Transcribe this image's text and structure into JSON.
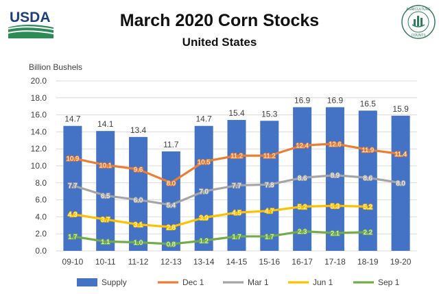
{
  "logo_text": "USDA",
  "seal_text": [
    "AGRICULTURE",
    "COUNTS"
  ],
  "title": "March 2020 Corn Stocks",
  "subtitle": "United States",
  "chart_data": {
    "type": "bar",
    "ylabel": "Billion Bushels",
    "ylim": [
      0,
      20
    ],
    "yticks": [
      "0.0",
      "2.0",
      "4.0",
      "6.0",
      "8.0",
      "10.0",
      "12.0",
      "14.0",
      "16.0",
      "18.0",
      "20.0"
    ],
    "grid": true,
    "legend_position": "bottom",
    "categories": [
      "09-10",
      "10-11",
      "11-12",
      "12-13",
      "13-14",
      "14-15",
      "15-16",
      "16-17",
      "17-18",
      "18-19",
      "19-20"
    ],
    "series": [
      {
        "name": "Supply",
        "kind": "bar",
        "color": "#4472C4",
        "values": [
          14.7,
          14.1,
          13.4,
          11.7,
          14.7,
          15.4,
          15.3,
          16.9,
          16.9,
          16.5,
          15.9
        ],
        "labels": [
          "14.7",
          "14.1",
          "13.4",
          "11.7",
          "14.7",
          "15.4",
          "15.3",
          "16.9",
          "16.9",
          "16.5",
          "15.9"
        ]
      },
      {
        "name": "Dec 1",
        "kind": "line",
        "color": "#ED7D31",
        "values": [
          10.9,
          10.1,
          9.6,
          8.0,
          10.5,
          11.2,
          11.2,
          12.4,
          12.6,
          11.9,
          11.4
        ],
        "labels": [
          "10.9",
          "10.1",
          "9.6",
          "8.0",
          "10.5",
          "11.2",
          "11.2",
          "12.4",
          "12.6",
          "11.9",
          "11.4"
        ]
      },
      {
        "name": "Mar 1",
        "kind": "line",
        "color": "#A5A5A5",
        "values": [
          7.7,
          6.5,
          6.0,
          5.4,
          7.0,
          7.7,
          7.8,
          8.6,
          8.9,
          8.6,
          8.0
        ],
        "labels": [
          "7.7",
          "6.5",
          "6.0",
          "5.4",
          "7.0",
          "7.7",
          "7.8",
          "8.6",
          "8.9",
          "8.6",
          "8.0"
        ]
      },
      {
        "name": "Jun 1",
        "kind": "line",
        "color": "#FFC000",
        "values": [
          4.3,
          3.7,
          3.1,
          2.8,
          3.9,
          4.5,
          4.7,
          5.2,
          5.3,
          5.2,
          null
        ],
        "labels": [
          "4.3",
          "3.7",
          "3.1",
          "2.8",
          "3.9",
          "4.5",
          "4.7",
          "5.2",
          "5.3",
          "5.2",
          ""
        ]
      },
      {
        "name": "Sep 1",
        "kind": "line",
        "color": "#70AD47",
        "values": [
          1.7,
          1.1,
          1.0,
          0.8,
          1.2,
          1.7,
          1.7,
          2.3,
          2.1,
          2.2,
          null
        ],
        "labels": [
          "1.7",
          "1.1",
          "1.0",
          "0.8",
          "1.2",
          "1.7",
          "1.7",
          "2.3",
          "2.1",
          "2.2",
          ""
        ]
      }
    ]
  }
}
